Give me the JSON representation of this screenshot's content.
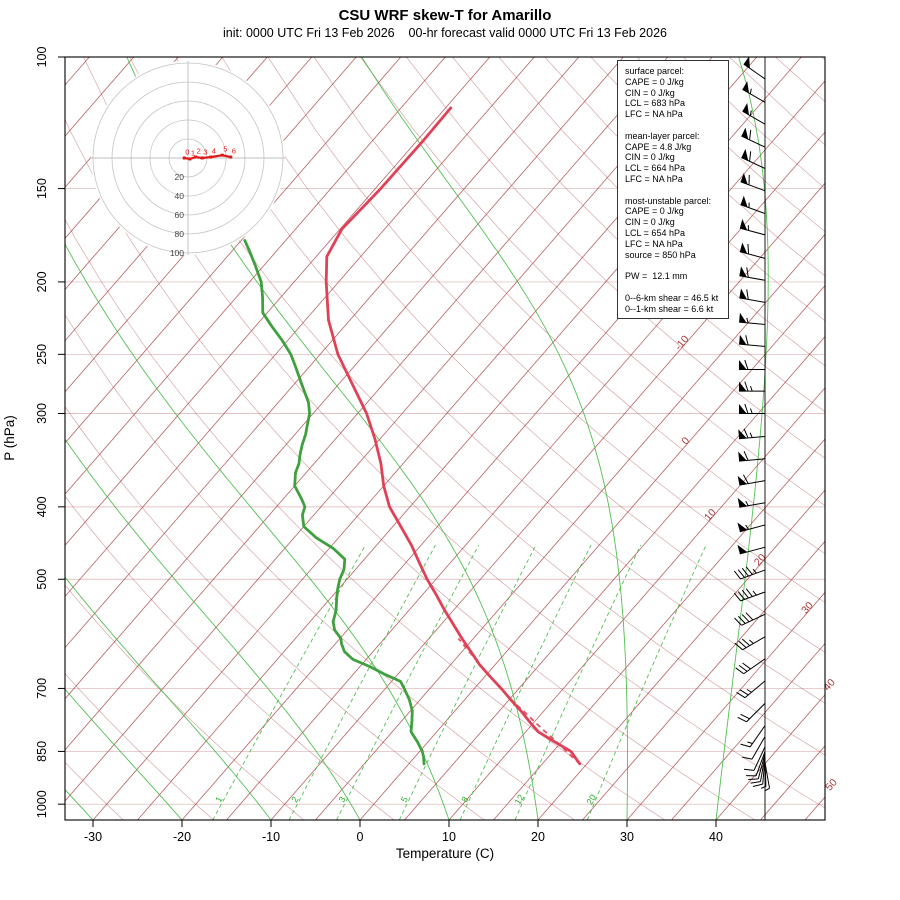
{
  "title": "CSU WRF skew-T for Amarillo",
  "subtitle": "init: 0000 UTC Fri 13 Feb 2026    00-hr forecast valid 0000 UTC Fri 13 Feb 2026",
  "axes": {
    "x_label": "Temperature (C)",
    "y_label": "P (hPa)",
    "pressure_ticks": [
      100,
      150,
      200,
      250,
      300,
      400,
      500,
      700,
      850,
      1000
    ],
    "temp_ticks": [
      -30,
      -20,
      -10,
      0,
      10,
      20,
      30,
      40
    ]
  },
  "info_box": {
    "lines": [
      "surface parcel:",
      "CAPE = 0 J/kg",
      "CIN = 0 J/kg",
      "LCL = 683 hPa",
      "LFC = NA hPa",
      "",
      "mean-layer parcel:",
      "CAPE = 4.8 J/kg",
      "CIN = 0 J/kg",
      "LCL = 664 hPa",
      "LFC = NA hPa",
      "",
      "most-unstable parcel:",
      "CAPE = 0 J/kg",
      "CIN = 0 J/kg",
      "LCL = 654 hPa",
      "LFC = NA hPa",
      "source = 850 hPa",
      "",
      "PW =  12.1 mm",
      "",
      "0--6-km shear = 46.5 kt",
      "0--1-km shear = 6.6 kt"
    ]
  },
  "hodograph": {
    "ring_labels": [
      20,
      40,
      60,
      80,
      100
    ],
    "km_marks": [
      0,
      1,
      2,
      3,
      4,
      5,
      6
    ],
    "trace_uv_kt": [
      [
        -4,
        0
      ],
      [
        2,
        -1
      ],
      [
        8,
        1
      ],
      [
        15,
        0
      ],
      [
        24,
        1
      ],
      [
        36,
        3
      ],
      [
        45,
        1
      ]
    ]
  },
  "chart_data": {
    "type": "line",
    "title": "CSU WRF skew-T for Amarillo",
    "xlabel": "Temperature (C)",
    "ylabel": "P (hPa)",
    "x_range_c": [
      -30,
      40
    ],
    "p_range_hpa": [
      100,
      1050
    ],
    "isotherms": {
      "min_c": -110,
      "max_c": 50,
      "step_c": 5
    },
    "dry_adiabats": {
      "theta_min_c": -40,
      "theta_max_c": 210,
      "step_c": 10
    },
    "moist_adiabat_starts_c": [
      -40,
      -30,
      -20,
      -10,
      0,
      10,
      20,
      30,
      40
    ],
    "mixing_ratio_lines_gkg": [
      1,
      2,
      3,
      5,
      8,
      12,
      20
    ],
    "isotherm_edge_labels_c": [
      -10,
      0,
      10,
      20,
      30,
      40,
      50
    ],
    "temperature_profile": [
      [
        883,
        19.2
      ],
      [
        865,
        18.0
      ],
      [
        850,
        17.0
      ],
      [
        825,
        14.2
      ],
      [
        800,
        11.4
      ],
      [
        775,
        9.4
      ],
      [
        750,
        7.4
      ],
      [
        725,
        5.2
      ],
      [
        700,
        3.0
      ],
      [
        675,
        0.6
      ],
      [
        650,
        -1.8
      ],
      [
        625,
        -4.0
      ],
      [
        600,
        -6.3
      ],
      [
        575,
        -8.6
      ],
      [
        550,
        -11.0
      ],
      [
        525,
        -13.4
      ],
      [
        500,
        -16.0
      ],
      [
        475,
        -18.5
      ],
      [
        450,
        -21.1
      ],
      [
        425,
        -24.1
      ],
      [
        400,
        -27.3
      ],
      [
        375,
        -30.0
      ],
      [
        350,
        -32.5
      ],
      [
        325,
        -35.5
      ],
      [
        300,
        -39.0
      ],
      [
        275,
        -43.3
      ],
      [
        250,
        -48.0
      ],
      [
        225,
        -52.4
      ],
      [
        200,
        -56.4
      ],
      [
        185,
        -58.8
      ],
      [
        170,
        -59.8
      ],
      [
        150,
        -59.4
      ],
      [
        130,
        -59.3
      ],
      [
        117,
        -59.4
      ]
    ],
    "dewpoint_profile": [
      [
        883,
        1.7
      ],
      [
        865,
        1.0
      ],
      [
        850,
        0.3
      ],
      [
        825,
        -1.2
      ],
      [
        800,
        -2.9
      ],
      [
        775,
        -3.8
      ],
      [
        750,
        -4.8
      ],
      [
        725,
        -6.2
      ],
      [
        700,
        -7.9
      ],
      [
        685,
        -9.0
      ],
      [
        670,
        -11.5
      ],
      [
        655,
        -13.8
      ],
      [
        640,
        -16.5
      ],
      [
        625,
        -18.2
      ],
      [
        610,
        -19.3
      ],
      [
        600,
        -19.9
      ],
      [
        585,
        -21.4
      ],
      [
        570,
        -22.4
      ],
      [
        550,
        -23.2
      ],
      [
        530,
        -24.3
      ],
      [
        515,
        -25.1
      ],
      [
        500,
        -25.8
      ],
      [
        485,
        -26.3
      ],
      [
        470,
        -27.2
      ],
      [
        455,
        -29.5
      ],
      [
        440,
        -32.5
      ],
      [
        425,
        -35.0
      ],
      [
        410,
        -36.3
      ],
      [
        400,
        -36.8
      ],
      [
        390,
        -38.0
      ],
      [
        375,
        -40.0
      ],
      [
        360,
        -41.2
      ],
      [
        350,
        -41.7
      ],
      [
        340,
        -42.5
      ],
      [
        330,
        -43.2
      ],
      [
        320,
        -43.8
      ],
      [
        310,
        -44.6
      ],
      [
        300,
        -45.4
      ],
      [
        290,
        -46.6
      ],
      [
        275,
        -49.0
      ],
      [
        260,
        -51.5
      ],
      [
        250,
        -53.3
      ],
      [
        240,
        -55.5
      ],
      [
        230,
        -58.0
      ],
      [
        220,
        -60.5
      ],
      [
        210,
        -62.0
      ],
      [
        200,
        -63.7
      ],
      [
        190,
        -66.0
      ],
      [
        182,
        -68.0
      ],
      [
        176,
        -69.6
      ]
    ],
    "parcel_profile": [
      [
        883,
        19.2
      ],
      [
        860,
        17.3
      ],
      [
        840,
        15.7
      ],
      [
        820,
        14.0
      ],
      [
        800,
        12.2
      ],
      [
        780,
        10.4
      ],
      [
        760,
        8.6
      ],
      [
        740,
        6.7
      ],
      [
        720,
        4.8
      ],
      [
        700,
        2.9
      ],
      [
        683,
        1.4
      ],
      [
        660,
        -0.8
      ],
      [
        640,
        -2.7
      ],
      [
        620,
        -4.7
      ],
      [
        600,
        -6.7
      ]
    ],
    "winds_format": "[pressure_hpa, speed_kt, direction_deg_from]",
    "winds": [
      [
        107,
        50,
        305
      ],
      [
        115,
        55,
        300
      ],
      [
        123,
        55,
        300
      ],
      [
        132,
        60,
        295
      ],
      [
        141,
        60,
        295
      ],
      [
        151,
        60,
        290
      ],
      [
        162,
        55,
        290
      ],
      [
        173,
        55,
        285
      ],
      [
        186,
        60,
        285
      ],
      [
        199,
        60,
        280
      ],
      [
        213,
        60,
        280
      ],
      [
        228,
        55,
        275
      ],
      [
        244,
        60,
        275
      ],
      [
        262,
        60,
        270
      ],
      [
        280,
        65,
        270
      ],
      [
        300,
        65,
        270
      ],
      [
        322,
        65,
        265
      ],
      [
        345,
        60,
        265
      ],
      [
        369,
        60,
        260
      ],
      [
        395,
        55,
        260
      ],
      [
        423,
        55,
        255
      ],
      [
        453,
        50,
        255
      ],
      [
        486,
        45,
        250
      ],
      [
        520,
        45,
        250
      ],
      [
        557,
        40,
        245
      ],
      [
        597,
        35,
        240
      ],
      [
        639,
        30,
        235
      ],
      [
        684,
        25,
        230
      ],
      [
        733,
        20,
        225
      ],
      [
        785,
        15,
        215
      ],
      [
        812,
        10,
        210
      ],
      [
        838,
        10,
        205
      ],
      [
        850,
        10,
        200
      ],
      [
        856,
        10,
        195
      ],
      [
        862,
        10,
        190
      ],
      [
        868,
        10,
        185
      ],
      [
        874,
        5,
        178
      ],
      [
        880,
        5,
        170
      ]
    ],
    "colors": {
      "temperature": "#df4257",
      "dewpoint": "#3fa03f",
      "parcel": "#df4257",
      "isotherm": "#a63b3b",
      "dry_adiabat": "#a63b3b",
      "moist_adiabat": "#35b535",
      "mixing_ratio": "#35b535",
      "hodograph_trace": "#e01818",
      "barbs": "#000000"
    }
  }
}
